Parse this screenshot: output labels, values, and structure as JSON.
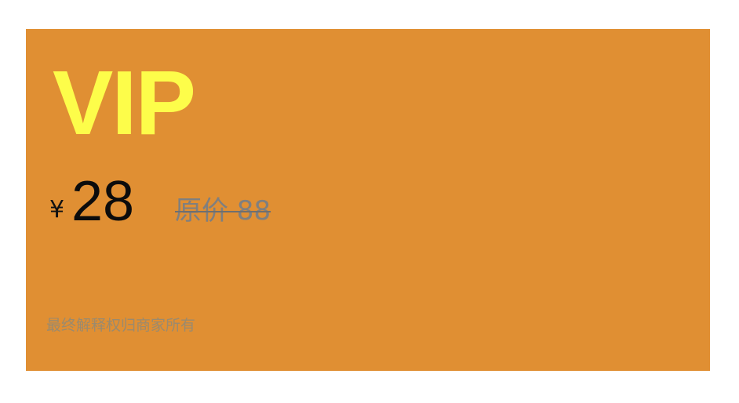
{
  "card": {
    "title": "VIP",
    "currency_symbol": "¥",
    "price": "28",
    "original_price": " 原价 88 ",
    "disclaimer": "最终解释权归商家所有"
  },
  "colors": {
    "card_background": "#e08f33",
    "title": "#fdfd4a",
    "price": "#0c0c0c",
    "original_price": "#7f7f7f",
    "disclaimer": "#9a8a6e"
  }
}
